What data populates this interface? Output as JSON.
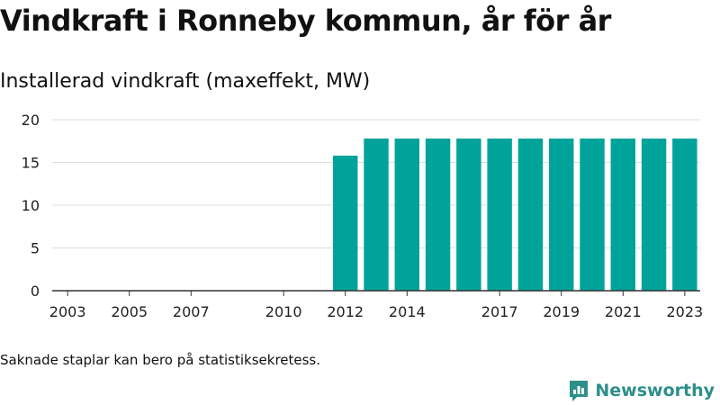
{
  "header": {
    "title": "Vindkraft i Ronneby kommun, år för år",
    "subtitle": "Installerad vindkraft (maxeffekt, MW)"
  },
  "footnote": "Saknade staplar kan bero på statistiksekretess.",
  "brand": {
    "name": "Newsworthy",
    "icon": "newsworthy-logo-icon",
    "color": "#2d8f8a"
  },
  "chart_data": {
    "type": "bar",
    "x": [
      2003,
      2004,
      2005,
      2006,
      2007,
      2008,
      2009,
      2010,
      2011,
      2012,
      2013,
      2014,
      2015,
      2016,
      2017,
      2018,
      2019,
      2020,
      2021,
      2022,
      2023
    ],
    "values": [
      0,
      0,
      0,
      0,
      0,
      null,
      null,
      0,
      0,
      15.8,
      17.8,
      17.8,
      17.8,
      17.8,
      17.8,
      17.8,
      17.8,
      17.8,
      17.8,
      17.8,
      17.8
    ],
    "xticks": [
      2003,
      2005,
      2007,
      2010,
      2012,
      2014,
      2017,
      2019,
      2021,
      2023
    ],
    "yticks": [
      0,
      5,
      10,
      15,
      20
    ],
    "ylim": [
      0,
      20
    ],
    "grid": true,
    "bar_color": "#00a39a",
    "gridline_color": "#dddddd",
    "axis_color": "#333333"
  }
}
